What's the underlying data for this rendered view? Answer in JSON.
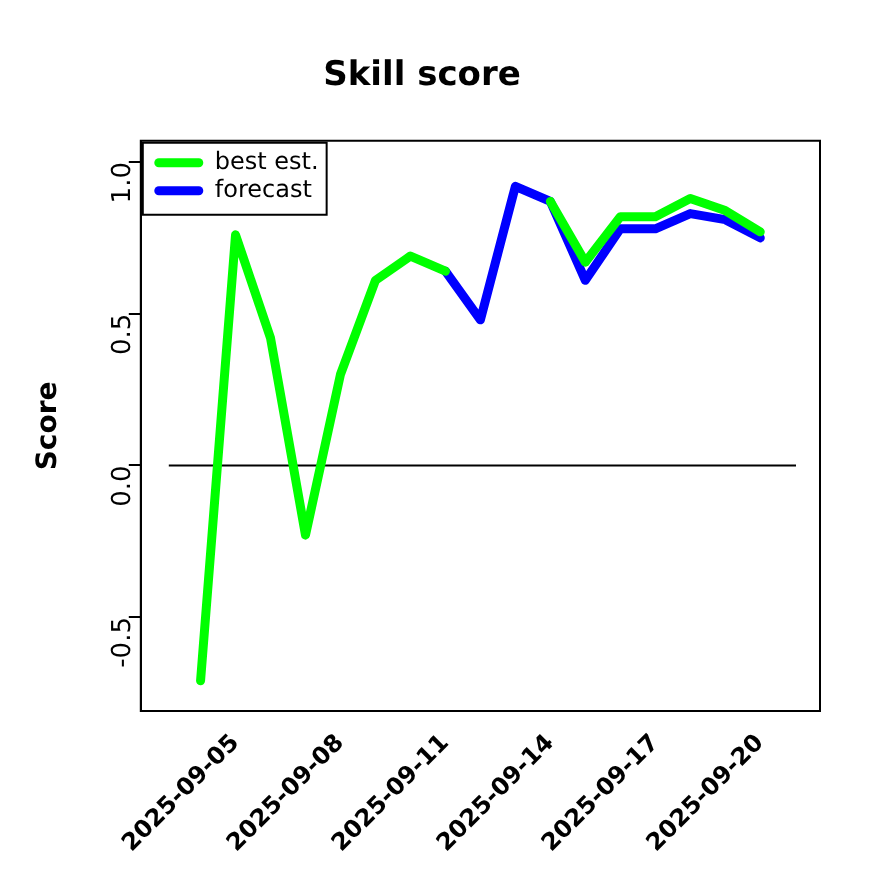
{
  "chart_data": {
    "type": "line",
    "title": "Skill score",
    "ylabel": "Score",
    "x": [
      "2025-09-04",
      "2025-09-05",
      "2025-09-06",
      "2025-09-07",
      "2025-09-08",
      "2025-09-09",
      "2025-09-10",
      "2025-09-11",
      "2025-09-12",
      "2025-09-13",
      "2025-09-14",
      "2025-09-15",
      "2025-09-16",
      "2025-09-17",
      "2025-09-18",
      "2025-09-19",
      "2025-09-20"
    ],
    "series": [
      {
        "name": "best est.",
        "color": "#00ff00",
        "values": [
          -0.71,
          0.76,
          0.42,
          -0.23,
          0.3,
          0.61,
          0.69,
          0.64,
          null,
          null,
          0.87,
          0.67,
          0.82,
          0.82,
          0.88,
          0.84,
          0.77
        ]
      },
      {
        "name": "forecast",
        "color": "#0000ff",
        "values": [
          null,
          null,
          null,
          null,
          null,
          null,
          null,
          0.64,
          0.48,
          0.92,
          0.87,
          0.61,
          0.78,
          0.78,
          0.83,
          0.81,
          0.75
        ]
      }
    ],
    "xlim": [
      "2025-09-02T07:00",
      "2025-09-21T17:00"
    ],
    "xticks": [
      "2025-09-05",
      "2025-09-08",
      "2025-09-11",
      "2025-09-14",
      "2025-09-17",
      "2025-09-20"
    ],
    "ylim": [
      -0.81,
      1.07
    ],
    "yticks": [
      {
        "value": -0.5,
        "label": "-0.5"
      },
      {
        "value": 0,
        "label": "0.0"
      },
      {
        "value": 0.5,
        "label": "0.5"
      },
      {
        "value": 1,
        "label": "1.0"
      }
    ],
    "ref_lines": [
      {
        "axis": "y",
        "value": 0,
        "color": "#000000"
      }
    ],
    "legend": "top left",
    "grid": false,
    "marker": "none",
    "line_style": "solid"
  }
}
